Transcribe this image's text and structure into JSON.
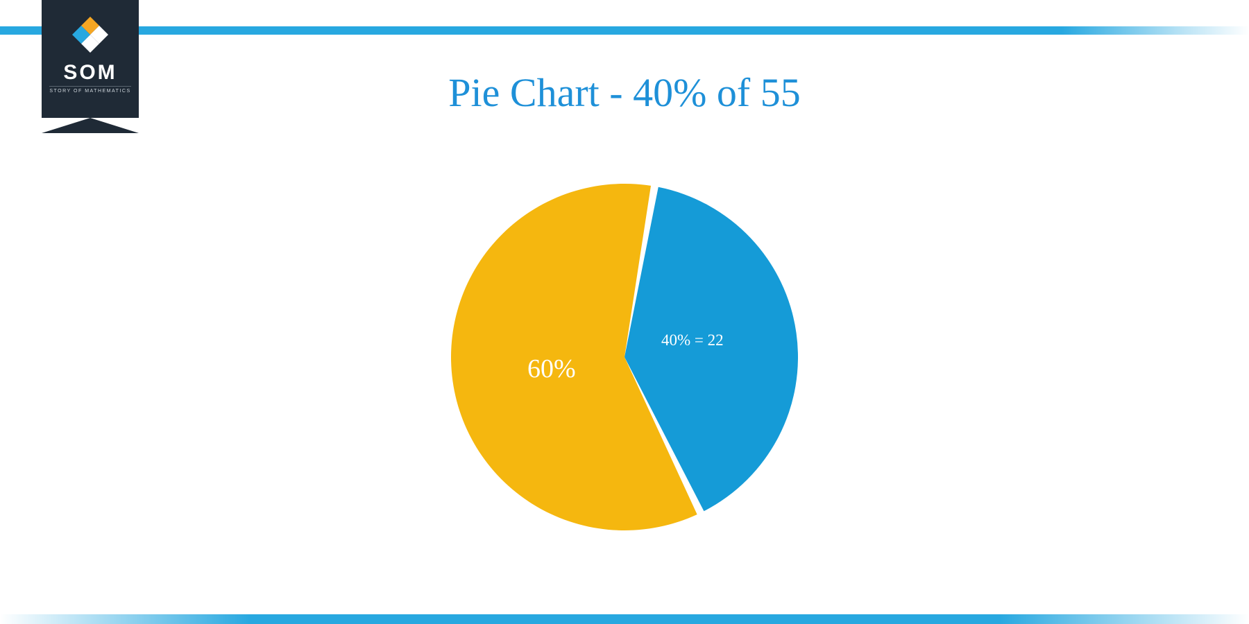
{
  "brand": {
    "name": "SOM",
    "tagline": "STORY OF MATHEMATICS",
    "badge_bg": "#1f2a36",
    "accent_orange": "#f5a623",
    "accent_blue": "#28a8e0"
  },
  "bars": {
    "color": "#28a8e0"
  },
  "chart": {
    "type": "pie",
    "title": "Pie Chart - 40% of 55",
    "title_color": "#1e90d8",
    "title_fontsize": 58,
    "background_color": "#ffffff",
    "radius": 250,
    "gap_deg": 2.5,
    "start_angle_deg": -80,
    "slices": [
      {
        "label": "40% = 22",
        "value": 40,
        "color": "#159bd7",
        "label_fontsize": 23
      },
      {
        "label": "60%",
        "value": 60,
        "color": "#f5b70f",
        "label_fontsize": 38
      }
    ],
    "label_color": "#ffffff"
  }
}
